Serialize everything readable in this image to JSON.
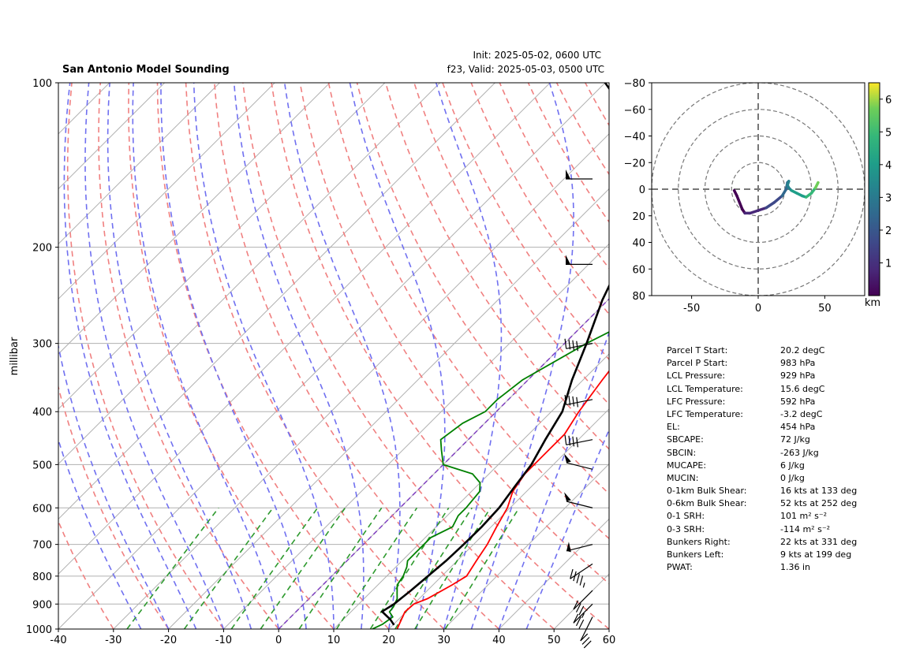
{
  "header": {
    "title": "San Antonio Model Sounding",
    "init": "Init: 2025-05-02, 0600 UTC",
    "valid": "f23, Valid: 2025-05-03, 0500 UTC"
  },
  "colors": {
    "temperature": "#ff0000",
    "dewpoint": "#008000",
    "parcel": "#000000",
    "dry_adiabat": "#f08080",
    "moist_adiabat": "#7070f0",
    "mixing_ratio": "#2e9a2e",
    "isotherm": "#b0b0b0",
    "zero_line": "#8040c0"
  },
  "chart_data": [
    {
      "type": "line",
      "name": "skew-t",
      "ylabel": "millibar",
      "x_ticks": [
        -40,
        -30,
        -20,
        -10,
        0,
        10,
        20,
        30,
        40,
        50,
        60
      ],
      "y_ticks": [
        100,
        200,
        300,
        400,
        500,
        600,
        700,
        800,
        900,
        1000
      ],
      "xlim": [
        -40,
        60
      ],
      "ylim": [
        1000,
        100
      ],
      "y_scale": "log",
      "grid": true,
      "series": [
        {
          "key": "temperature",
          "points": [
            [
              21.5,
              1000
            ],
            [
              19.8,
              930
            ],
            [
              20,
              900
            ],
            [
              21.5,
              880
            ],
            [
              23.5,
              830
            ],
            [
              24.5,
              800
            ],
            [
              23.5,
              750
            ],
            [
              22.5,
              700
            ],
            [
              21,
              650
            ],
            [
              19.5,
              600
            ],
            [
              17.5,
              560
            ],
            [
              16.5,
              520
            ],
            [
              16.5,
              500
            ],
            [
              16.5,
              470
            ],
            [
              16.5,
              440
            ],
            [
              15,
              400
            ],
            [
              13.5,
              350
            ],
            [
              12,
              300
            ],
            [
              10.5,
              250
            ],
            [
              9,
              220
            ],
            [
              8,
              190
            ],
            [
              8,
              170
            ],
            [
              10,
              150
            ],
            [
              14,
              140
            ],
            [
              20,
              125
            ],
            [
              27,
              110
            ],
            [
              33,
              100
            ]
          ]
        },
        {
          "key": "dewpoint",
          "points": [
            [
              17,
              1000
            ],
            [
              18,
              980
            ],
            [
              18.5,
              950
            ],
            [
              17,
              930
            ],
            [
              16.8,
              910
            ],
            [
              16,
              880
            ],
            [
              15,
              860
            ],
            [
              13.5,
              830
            ],
            [
              13,
              800
            ],
            [
              12,
              770
            ],
            [
              11,
              750
            ],
            [
              11,
              720
            ],
            [
              11,
              700
            ],
            [
              11,
              680
            ],
            [
              13,
              650
            ],
            [
              12,
              620
            ],
            [
              12,
              600
            ],
            [
              11.5,
              560
            ],
            [
              10,
              540
            ],
            [
              7,
              520
            ],
            [
              0,
              500
            ],
            [
              -3,
              470
            ],
            [
              -5,
              450
            ],
            [
              -4,
              420
            ],
            [
              -2,
              400
            ],
            [
              -2,
              380
            ],
            [
              -1,
              350
            ],
            [
              4,
              300
            ],
            [
              10,
              260
            ],
            [
              12.5,
              220
            ],
            [
              13,
              200
            ],
            [
              13,
              180
            ],
            [
              11,
              150
            ],
            [
              8,
              140
            ],
            [
              1,
              120
            ],
            [
              -5,
              110
            ],
            [
              -4,
              105
            ],
            [
              -4,
              100
            ]
          ]
        },
        {
          "key": "parcel",
          "points": [
            [
              20.2,
              983
            ],
            [
              18.5,
              960
            ],
            [
              15.6,
              929
            ],
            [
              16.4,
              900
            ],
            [
              17,
              850
            ],
            [
              17.5,
              800
            ],
            [
              18,
              750
            ],
            [
              18.2,
              700
            ],
            [
              18.3,
              650
            ],
            [
              18,
              600
            ],
            [
              17,
              550
            ],
            [
              16,
              500
            ],
            [
              14,
              450
            ],
            [
              12,
              400
            ],
            [
              8,
              350
            ],
            [
              4,
              300
            ],
            [
              -1,
              250
            ],
            [
              -6,
              200
            ],
            [
              -12,
              170
            ],
            [
              -16,
              150
            ],
            [
              -25,
              125
            ],
            [
              -33,
              110
            ],
            [
              -40,
              100
            ]
          ]
        }
      ]
    },
    {
      "type": "line",
      "name": "hodograph",
      "xlim": [
        -80,
        80
      ],
      "ylim": [
        -80,
        80
      ],
      "x_ticks": [
        -50,
        0,
        50
      ],
      "y_ticks": [
        -80,
        -60,
        -40,
        -20,
        0,
        20,
        40,
        60,
        80
      ],
      "ring_speeds": [
        20,
        40,
        60,
        80
      ],
      "colorbar_label": "km",
      "colorbar_ticks": [
        1,
        2,
        3,
        4,
        5,
        6
      ],
      "colorbar_range": [
        0,
        6.5
      ],
      "points": [
        [
          -18,
          -1,
          0
        ],
        [
          -16,
          -5,
          0.2
        ],
        [
          -14,
          -10,
          0.4
        ],
        [
          -12,
          -15,
          0.6
        ],
        [
          -10,
          -18,
          0.8
        ],
        [
          -6,
          -18,
          1.0
        ],
        [
          0,
          -16,
          1.3
        ],
        [
          6,
          -14,
          1.6
        ],
        [
          12,
          -10,
          2.0
        ],
        [
          18,
          -5,
          2.4
        ],
        [
          21,
          0,
          2.8
        ],
        [
          22,
          5,
          3.1
        ],
        [
          23,
          6,
          3.3
        ],
        [
          22,
          3,
          3.5
        ],
        [
          23,
          1,
          3.7
        ],
        [
          25,
          -1,
          3.9
        ],
        [
          29,
          -3,
          4.2
        ],
        [
          33,
          -5,
          4.6
        ],
        [
          36,
          -6,
          5.0
        ],
        [
          40,
          -3,
          5.4
        ],
        [
          43,
          1,
          5.8
        ],
        [
          45,
          5,
          6.3
        ]
      ]
    }
  ],
  "skew_axis": {
    "x_ticks": [
      "-40",
      "-30",
      "-20",
      "-10",
      "0",
      "10",
      "20",
      "30",
      "40",
      "50",
      "60"
    ],
    "y_ticks": [
      "100",
      "200",
      "300",
      "400",
      "500",
      "600",
      "700",
      "800",
      "900",
      "1000"
    ]
  },
  "hodo_axis": {
    "x_ticks": [
      "-50",
      "0",
      "50"
    ],
    "y_ticks": [
      "80",
      "60",
      "40",
      "20",
      "0",
      "−20",
      "−40",
      "−60",
      "−80"
    ],
    "colorbar_ticks": [
      "1",
      "2",
      "3",
      "4",
      "5",
      "6"
    ],
    "colorbar_label": "km"
  },
  "wind_barbs": [
    {
      "p": 150,
      "u": -20,
      "v": 0
    },
    {
      "p": 215,
      "u": -20,
      "v": 0
    },
    {
      "p": 300,
      "u": -15,
      "v": 3
    },
    {
      "p": 380,
      "u": -15,
      "v": 3
    },
    {
      "p": 450,
      "u": -15,
      "v": 3
    },
    {
      "p": 510,
      "u": -20,
      "v": -5
    },
    {
      "p": 600,
      "u": -20,
      "v": -5
    },
    {
      "p": 700,
      "u": -20,
      "v": 5
    },
    {
      "p": 760,
      "u": -15,
      "v": 10
    },
    {
      "p": 850,
      "u": -10,
      "v": 10
    },
    {
      "p": 900,
      "u": -8,
      "v": 8
    },
    {
      "p": 950,
      "u": -5,
      "v": 10
    }
  ],
  "stats": [
    {
      "label": "Parcel T Start:",
      "value": "20.2 degC"
    },
    {
      "label": "Parcel P Start:",
      "value": "983 hPa"
    },
    {
      "label": "LCL Pressure:",
      "value": "929 hPa"
    },
    {
      "label": "LCL Temperature:",
      "value": "15.6 degC"
    },
    {
      "label": "LFC Pressure:",
      "value": "592 hPa"
    },
    {
      "label": "LFC Temperature:",
      "value": "-3.2 degC"
    },
    {
      "label": "EL:",
      "value": "454 hPa"
    },
    {
      "label": "SBCAPE:",
      "value": "72 J/kg"
    },
    {
      "label": "SBCIN:",
      "value": "-263 J/kg"
    },
    {
      "label": "MUCAPE:",
      "value": "6 J/kg"
    },
    {
      "label": "MUCIN:",
      "value": "0 J/kg"
    },
    {
      "label": "0-1km Bulk Shear:",
      "value": "16 kts at 133 deg"
    },
    {
      "label": "0-6km Bulk Shear:",
      "value": "52 kts at 252 deg"
    },
    {
      "label": "0-1 SRH:",
      "value": "101 m² s⁻²"
    },
    {
      "label": "0-3 SRH:",
      "value": "-114 m² s⁻²"
    },
    {
      "label": "Bunkers Right:",
      "value": "22 kts at 331 deg"
    },
    {
      "label": "Bunkers Left:",
      "value": "9 kts at 199 deg"
    },
    {
      "label": "PWAT:",
      "value": "1.36 in"
    }
  ]
}
